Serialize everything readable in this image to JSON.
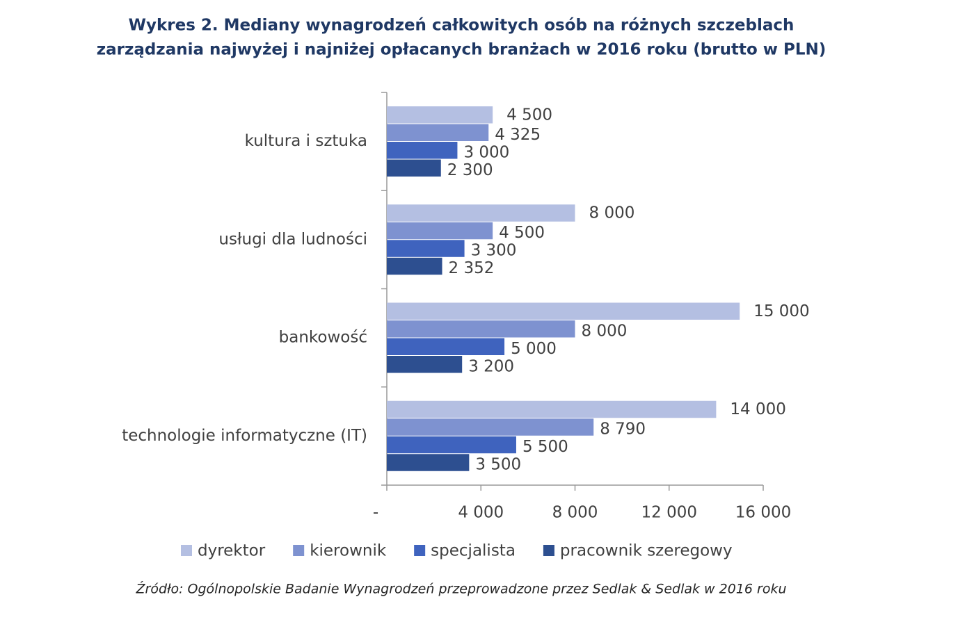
{
  "chart_data": {
    "type": "hbar",
    "title": [
      "Wykres 2. Mediany wynagrodzeń całkowitych osób na różnych szczeblach",
      "zarządzania najwyżej i najniżej opłacanych branżach w 2016 roku (brutto w PLN)"
    ],
    "categories": [
      "kultura i sztuka",
      "usługi dla ludności",
      "bankowość",
      "technologie informatyczne (IT)"
    ],
    "series": [
      {
        "name": "dyrektor",
        "color": "#b4bfe2",
        "values": [
          4500,
          8000,
          15000,
          14000
        ],
        "value_labels": [
          "4 500",
          "8 000",
          "15 000",
          "14 000"
        ]
      },
      {
        "name": "kierownik",
        "color": "#7e92d0",
        "values": [
          4325,
          4500,
          8000,
          8790
        ],
        "value_labels": [
          "4 325",
          "4 500",
          "8 000",
          "8 790"
        ]
      },
      {
        "name": "specjalista",
        "color": "#3f63be",
        "values": [
          3000,
          3300,
          5000,
          5500
        ],
        "value_labels": [
          "3 000",
          "3 300",
          "5 000",
          "5 500"
        ]
      },
      {
        "name": "pracownik szeregowy",
        "color": "#2d4f90",
        "values": [
          2300,
          2352,
          3200,
          3500
        ],
        "value_labels": [
          "2 300",
          "2 352",
          "3 200",
          "3 500"
        ]
      }
    ],
    "xlim": [
      0,
      16000
    ],
    "xticks": [
      {
        "value": 0,
        "label": "-"
      },
      {
        "value": 4000,
        "label": "4 000"
      },
      {
        "value": 8000,
        "label": "8 000"
      },
      {
        "value": 12000,
        "label": "12 000"
      },
      {
        "value": 16000,
        "label": "16 000"
      }
    ],
    "legend": "bottom",
    "source": "Źródło: Ogólnopolskie Badanie Wynagrodzeń przeprowadzone przez Sedlak & Sedlak w 2016 roku"
  }
}
